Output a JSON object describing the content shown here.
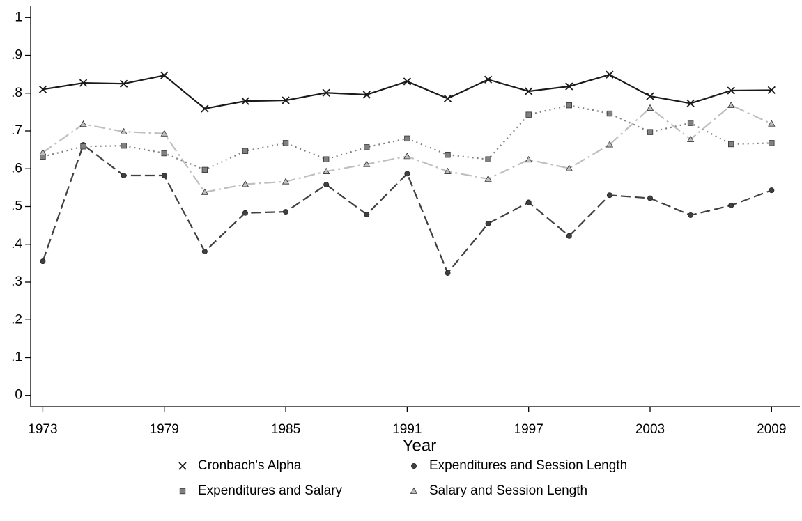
{
  "chart_data": {
    "type": "line",
    "xlabel": "Year",
    "x": [
      1973,
      1975,
      1977,
      1979,
      1981,
      1983,
      1985,
      1987,
      1989,
      1991,
      1993,
      1995,
      1997,
      1999,
      2001,
      2003,
      2005,
      2007,
      2009
    ],
    "xlim": [
      1972.4,
      2010.4
    ],
    "xticks": [
      1973,
      1979,
      1985,
      1991,
      1997,
      2003,
      2009
    ],
    "ylim": [
      -0.03,
      1.03
    ],
    "yticks": [
      0,
      {
        "value": 0.1,
        "label": ".1"
      },
      {
        "value": 0.2,
        "label": ".2"
      },
      {
        "value": 0.3,
        "label": ".3"
      },
      {
        "value": 0.4,
        "label": ".4"
      },
      {
        "value": 0.5,
        "label": ".5"
      },
      {
        "value": 0.6,
        "label": ".6"
      },
      {
        "value": 0.7,
        "label": ".7"
      },
      {
        "value": 0.8,
        "label": ".8"
      },
      {
        "value": 0.9,
        "label": ".9"
      },
      1
    ],
    "series": [
      {
        "name": "Cronbach's Alpha",
        "color": "#1a1a1a",
        "dash": "solid",
        "marker": "x",
        "values": [
          0.81,
          0.827,
          0.825,
          0.847,
          0.759,
          0.779,
          0.781,
          0.801,
          0.796,
          0.831,
          0.786,
          0.836,
          0.805,
          0.818,
          0.849,
          0.792,
          0.773,
          0.807,
          0.808
        ]
      },
      {
        "name": "Expenditures and Session Length",
        "color": "#404040",
        "dash": "dashed",
        "marker": "circle",
        "values": [
          0.355,
          0.663,
          0.582,
          0.582,
          0.381,
          0.483,
          0.486,
          0.558,
          0.479,
          0.587,
          0.324,
          0.455,
          0.511,
          0.422,
          0.53,
          0.522,
          0.477,
          0.503,
          0.543
        ]
      },
      {
        "name": "Expenditures and Salary",
        "color": "#808080",
        "dash": "dotted",
        "marker": "square",
        "values": [
          0.632,
          0.659,
          0.661,
          0.641,
          0.597,
          0.647,
          0.668,
          0.625,
          0.657,
          0.68,
          0.637,
          0.625,
          0.743,
          0.768,
          0.746,
          0.697,
          0.721,
          0.665,
          0.668
        ]
      },
      {
        "name": "Salary and Session Length",
        "color": "#bfbfbf",
        "dash": "dashdot",
        "marker": "triangle",
        "values": [
          0.643,
          0.718,
          0.698,
          0.693,
          0.538,
          0.559,
          0.566,
          0.593,
          0.612,
          0.633,
          0.593,
          0.573,
          0.624,
          0.601,
          0.664,
          0.761,
          0.678,
          0.768,
          0.719
        ]
      }
    ],
    "legend": "bottom"
  }
}
